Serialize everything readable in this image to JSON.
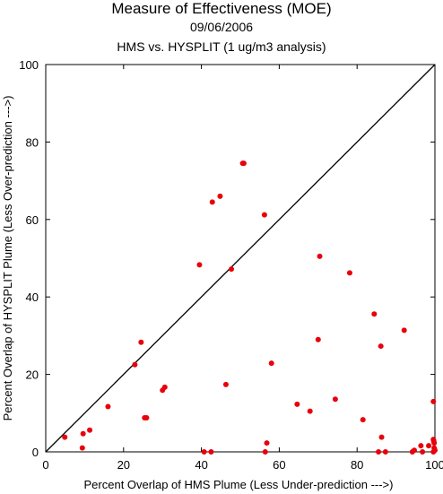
{
  "chart_data": {
    "type": "scatter",
    "title": "Measure of Effectiveness (MOE)",
    "subtitle": "09/06/2006",
    "subtitle2": "HMS vs. HYSPLIT  (1 ug/m3 analysis)",
    "xlabel": "Percent Overlap of HMS Plume (Less Under-prediction --->)",
    "ylabel": "Percent Overlap of HYSPLIT Plume (Less Over-prediction --->)",
    "xlim": [
      0,
      100
    ],
    "ylim": [
      0,
      100
    ],
    "xticks": [
      "0",
      "20",
      "40",
      "60",
      "80",
      "100"
    ],
    "yticks": [
      "0",
      "20",
      "40",
      "60",
      "80",
      "100"
    ],
    "grid": false,
    "reference_line": "diagonal y = x",
    "point_color": "#e8000b",
    "points": [
      [
        4.9,
        3.8
      ],
      [
        9.4,
        1.0
      ],
      [
        9.6,
        4.7
      ],
      [
        11.3,
        5.6
      ],
      [
        16.0,
        11.7
      ],
      [
        22.9,
        22.5
      ],
      [
        24.5,
        28.3
      ],
      [
        25.4,
        8.8
      ],
      [
        25.9,
        8.8
      ],
      [
        30.0,
        15.9
      ],
      [
        30.6,
        16.7
      ],
      [
        39.5,
        48.3
      ],
      [
        40.7,
        0.0
      ],
      [
        42.5,
        0.0
      ],
      [
        42.8,
        64.5
      ],
      [
        44.8,
        66.0
      ],
      [
        46.3,
        17.4
      ],
      [
        47.7,
        47.2
      ],
      [
        50.6,
        74.5
      ],
      [
        50.9,
        74.5
      ],
      [
        56.2,
        61.2
      ],
      [
        56.4,
        0.0
      ],
      [
        56.8,
        2.3
      ],
      [
        58.0,
        22.9
      ],
      [
        64.6,
        12.3
      ],
      [
        67.9,
        10.5
      ],
      [
        70.0,
        29.0
      ],
      [
        70.4,
        50.5
      ],
      [
        74.4,
        13.6
      ],
      [
        78.1,
        46.2
      ],
      [
        81.5,
        8.3
      ],
      [
        84.4,
        35.6
      ],
      [
        85.5,
        0.0
      ],
      [
        86.1,
        27.3
      ],
      [
        86.3,
        3.8
      ],
      [
        87.3,
        0.0
      ],
      [
        92.1,
        31.4
      ],
      [
        94.2,
        0.0
      ],
      [
        94.7,
        0.4
      ],
      [
        96.4,
        1.6
      ],
      [
        96.8,
        0.0
      ],
      [
        98.4,
        1.6
      ],
      [
        99.6,
        13.0
      ],
      [
        99.6,
        0.0
      ],
      [
        99.6,
        3.2
      ],
      [
        99.8,
        1.0
      ],
      [
        99.8,
        2.3
      ],
      [
        100.0,
        0.4
      ],
      [
        99.7,
        2.8
      ]
    ]
  }
}
